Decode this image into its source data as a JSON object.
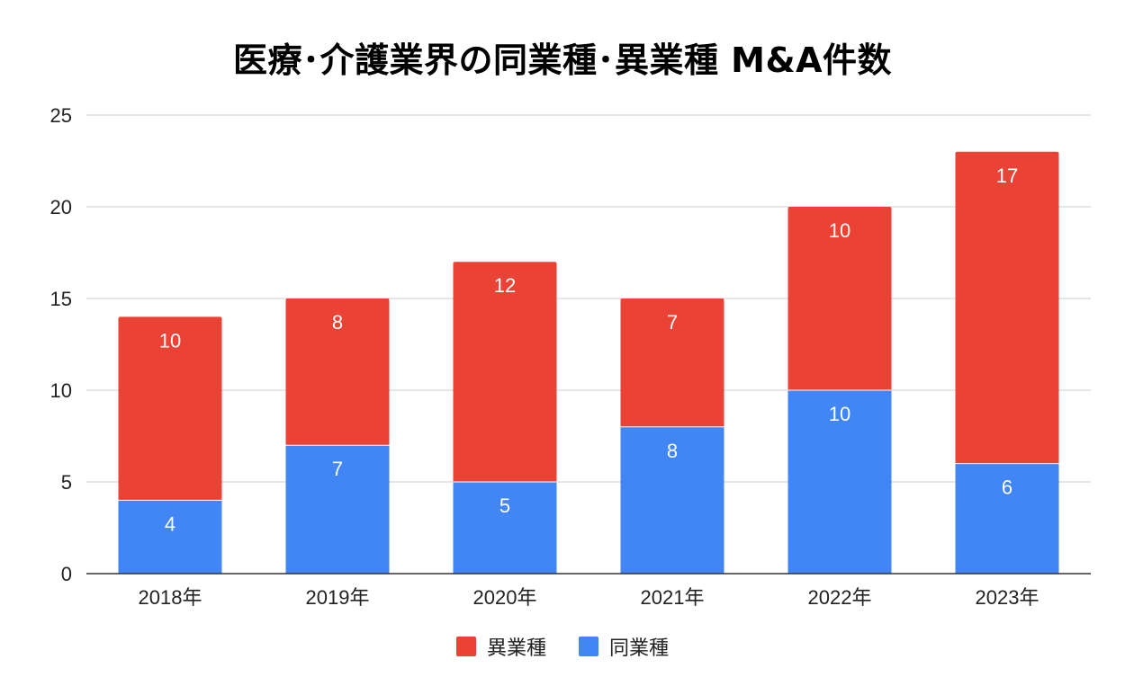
{
  "chart_data": {
    "type": "bar",
    "stacked": true,
    "title": "医療･介護業界の同業種･異業種 M&A件数",
    "categories": [
      "2018年",
      "2019年",
      "2020年",
      "2021年",
      "2022年",
      "2023年"
    ],
    "series": [
      {
        "name": "同業種",
        "color": "#4285f4",
        "values": [
          4,
          7,
          5,
          8,
          10,
          6
        ]
      },
      {
        "name": "異業種",
        "color": "#ea4335",
        "values": [
          10,
          8,
          12,
          7,
          10,
          17
        ]
      }
    ],
    "xlabel": "",
    "ylabel": "",
    "ylim": [
      0,
      25
    ],
    "yticks": [
      "0",
      "5",
      "10",
      "15",
      "20",
      "25"
    ],
    "grid": true,
    "legend_position": "bottom"
  },
  "legend": {
    "items": [
      {
        "label": "異業種",
        "color": "#ea4335"
      },
      {
        "label": "同業種",
        "color": "#4285f4"
      }
    ]
  }
}
